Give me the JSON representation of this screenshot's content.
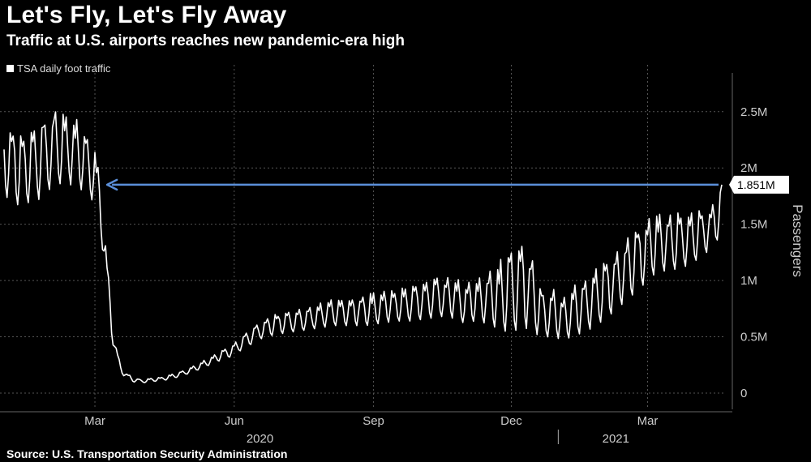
{
  "header": {
    "title": "Let's Fly, Let's Fly Away",
    "subtitle": "Traffic at U.S. airports reaches new pandemic-era high"
  },
  "footer": {
    "source": "Source: U.S. Transportation Security Administration"
  },
  "colors": {
    "background": "#000000",
    "line": "#ffffff",
    "arrow": "#5b8fd9",
    "grid": "#555555"
  },
  "chart_data": {
    "type": "line",
    "title": "Let's Fly, Let's Fly Away",
    "subtitle": "Traffic at U.S. airports reaches new pandemic-era high",
    "ylabel": "Passengers",
    "xlabel": "",
    "x_unit": "day of 2020 (1 = Jan 1, 2020)",
    "xlim": [
      1,
      475
    ],
    "ylim": [
      0,
      2.7
    ],
    "y_unit": "millions of passengers",
    "grid": true,
    "legend": {
      "position": "top-left",
      "entries": [
        "TSA daily foot traffic"
      ]
    },
    "yticks": [
      {
        "value": 0,
        "label": "0"
      },
      {
        "value": 0.5,
        "label": "0.5M"
      },
      {
        "value": 1,
        "label": "1M"
      },
      {
        "value": 1.5,
        "label": "1.5M"
      },
      {
        "value": 2,
        "label": "2M"
      },
      {
        "value": 2.5,
        "label": "2.5M"
      }
    ],
    "xticks": [
      {
        "value": 61,
        "label": "Mar"
      },
      {
        "value": 153,
        "label": "Jun"
      },
      {
        "value": 245,
        "label": "Sep"
      },
      {
        "value": 336,
        "label": "Dec"
      },
      {
        "value": 426,
        "label": "Mar"
      }
    ],
    "year_labels": [
      {
        "value": 170,
        "label": "2020"
      },
      {
        "value": 405,
        "label": "2021"
      }
    ],
    "year_divider": 367,
    "series": [
      {
        "name": "TSA daily foot traffic",
        "x": [
          1,
          6,
          12,
          18,
          24,
          30,
          36,
          42,
          48,
          54,
          60,
          64,
          68,
          72,
          75,
          78,
          82,
          86,
          92,
          98,
          104,
          110,
          120,
          130,
          140,
          150,
          160,
          165,
          170,
          180,
          190,
          200,
          210,
          220,
          230,
          240,
          250,
          260,
          270,
          280,
          290,
          300,
          305,
          310,
          320,
          326,
          330,
          334,
          340,
          345,
          350,
          355,
          360,
          364,
          368,
          372,
          376,
          380,
          385,
          390,
          400,
          410,
          420,
          430,
          440,
          446,
          450,
          455,
          460,
          465,
          470,
          475
        ],
        "hi": [
          2.42,
          2.38,
          2.3,
          2.36,
          2.43,
          2.45,
          2.52,
          2.48,
          2.44,
          2.38,
          2.2,
          1.95,
          1.35,
          0.75,
          0.4,
          0.25,
          0.18,
          0.14,
          0.12,
          0.13,
          0.14,
          0.16,
          0.2,
          0.27,
          0.34,
          0.42,
          0.52,
          0.58,
          0.62,
          0.7,
          0.72,
          0.76,
          0.8,
          0.84,
          0.86,
          0.88,
          0.9,
          0.92,
          0.95,
          1.0,
          1.03,
          1.02,
          0.96,
          1.0,
          1.05,
          1.15,
          1.2,
          1.24,
          1.25,
          1.34,
          1.2,
          0.95,
          0.9,
          0.92,
          0.88,
          0.9,
          0.94,
          0.98,
          1.0,
          1.08,
          1.2,
          1.35,
          1.48,
          1.58,
          1.6,
          1.6,
          1.58,
          1.6,
          1.62,
          1.66,
          1.72,
          1.851
        ],
        "lo": [
          1.75,
          1.72,
          1.65,
          1.7,
          1.72,
          1.8,
          1.85,
          1.88,
          1.82,
          1.8,
          1.7,
          1.55,
          1.0,
          0.5,
          0.28,
          0.18,
          0.13,
          0.1,
          0.09,
          0.1,
          0.11,
          0.12,
          0.16,
          0.21,
          0.27,
          0.32,
          0.4,
          0.44,
          0.48,
          0.52,
          0.54,
          0.56,
          0.58,
          0.6,
          0.6,
          0.6,
          0.62,
          0.64,
          0.64,
          0.66,
          0.68,
          0.66,
          0.62,
          0.64,
          0.62,
          0.58,
          0.55,
          0.55,
          0.56,
          0.58,
          0.55,
          0.5,
          0.5,
          0.5,
          0.48,
          0.48,
          0.5,
          0.52,
          0.55,
          0.58,
          0.68,
          0.8,
          0.92,
          1.05,
          1.1,
          1.1,
          1.12,
          1.15,
          1.2,
          1.25,
          1.3,
          1.45
        ]
      }
    ],
    "annotations": [
      {
        "type": "reference-arrow",
        "value": 1.851,
        "from_x": 475,
        "to_x": 68,
        "label": "1.851M"
      }
    ]
  }
}
